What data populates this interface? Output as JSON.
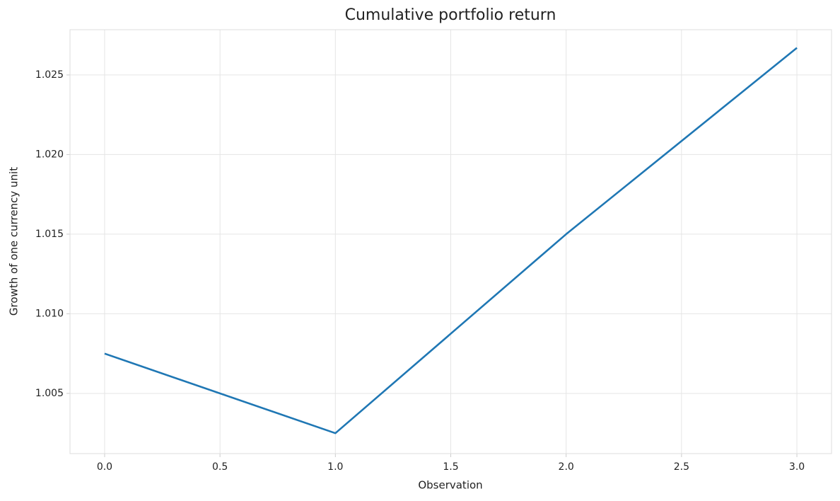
{
  "chart_data": {
    "type": "line",
    "title": "Cumulative portfolio return",
    "x_label": "Observation",
    "y_label": "Growth of one currency unit",
    "x": [
      0,
      1,
      2,
      3
    ],
    "values": [
      1.0075,
      1.0025,
      1.015,
      1.0267
    ],
    "color": "#1f77b4",
    "xlim": [
      -0.15,
      3.15
    ],
    "ylim": [
      1.00122,
      1.02784
    ],
    "xticks": [
      {
        "value": 0,
        "label": "0.0"
      },
      {
        "value": 0.5,
        "label": "0.5"
      },
      {
        "value": 1,
        "label": "1.0"
      },
      {
        "value": 1.5,
        "label": "1.5"
      },
      {
        "value": 2,
        "label": "2.0"
      },
      {
        "value": 2.5,
        "label": "2.5"
      },
      {
        "value": 3,
        "label": "3.0"
      }
    ],
    "yticks": [
      1.005,
      {
        "value": 1.01,
        "label": "1.010"
      },
      1.015,
      {
        "value": 1.02,
        "label": "1.020"
      },
      1.025
    ],
    "grid": true
  }
}
